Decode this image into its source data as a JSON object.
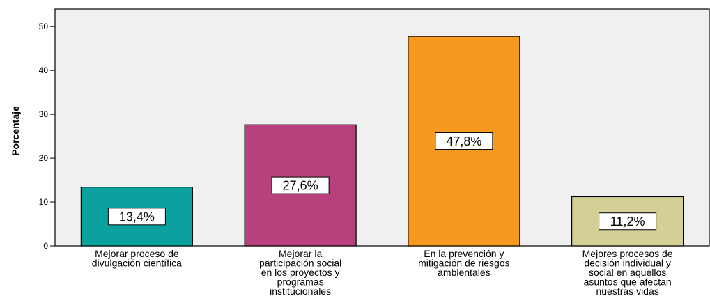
{
  "chart_data": {
    "type": "bar",
    "title": "",
    "xlabel": "",
    "ylabel": "Porcentaje",
    "ylim": [
      0,
      54
    ],
    "yticks": [
      0,
      10,
      20,
      30,
      40,
      50
    ],
    "grid": false,
    "categories": [
      "Mejorar proceso de divulgación científica",
      "Mejorar la participación social en los proyectos y programas institucionales",
      "En la prevención y mitigación de riesgos ambientales",
      "Mejores procesos de decisión individual y social en aquellos asuntos que afectan nuestras vidas"
    ],
    "category_lines": [
      [
        "Mejorar proceso de",
        "divulgación científica"
      ],
      [
        "Mejorar la",
        "participación social",
        "en los proyectos y",
        "programas",
        "institucionales"
      ],
      [
        "En la prevención y",
        "mitigación de riesgos",
        "ambientales"
      ],
      [
        "Mejores procesos de",
        "decisión individual y",
        "social en aquellos",
        "asuntos que afectan",
        "nuestras vidas"
      ]
    ],
    "values": [
      13.4,
      27.6,
      47.8,
      11.2
    ],
    "data_labels": [
      "13,4%",
      "27,6%",
      "47,8%",
      "11,2%"
    ],
    "colors": [
      "#0aa19f",
      "#b8407d",
      "#f7981f",
      "#d3cf96"
    ],
    "plot_background": "#f0f0f0"
  }
}
